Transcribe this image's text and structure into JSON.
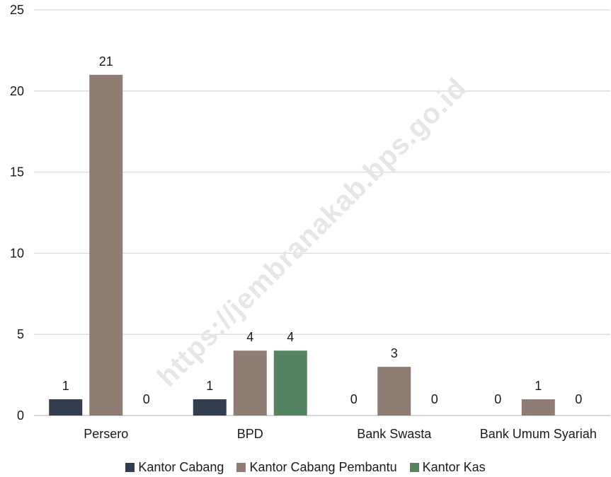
{
  "chart_data": {
    "type": "bar",
    "categories": [
      "Persero",
      "BPD",
      "Bank Swasta",
      "Bank Umum Syariah"
    ],
    "series": [
      {
        "name": "Kantor Cabang",
        "values": [
          1,
          1,
          0,
          0
        ],
        "color": "#323e4f"
      },
      {
        "name": "Kantor Cabang Pembantu",
        "values": [
          21,
          4,
          3,
          1
        ],
        "color": "#8f7d74"
      },
      {
        "name": "Kantor Kas",
        "values": [
          0,
          4,
          0,
          0
        ],
        "color": "#548460"
      }
    ],
    "ylim": [
      0,
      25
    ],
    "yticks": [
      0,
      5,
      10,
      15,
      20,
      25
    ],
    "grid": true,
    "legend": "bottom",
    "title": "",
    "xlabel": "",
    "ylabel": ""
  },
  "watermark": "https://jembranakab.bps.go.id"
}
